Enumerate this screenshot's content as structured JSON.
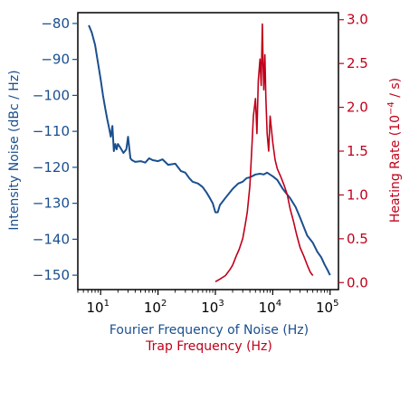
{
  "chart_data": {
    "type": "line",
    "colors": {
      "left": "#1a4f8f",
      "right": "#c0001a",
      "frame": "#000000"
    },
    "x_axis": {
      "scale": "log",
      "range_hz": [
        4,
        140000
      ],
      "ticks": [
        {
          "value": 10,
          "label": "10",
          "exponent": "1"
        },
        {
          "value": 100,
          "label": "10",
          "exponent": "2"
        },
        {
          "value": 1000,
          "label": "10",
          "exponent": "3"
        },
        {
          "value": 10000,
          "label": "10",
          "exponent": "4"
        },
        {
          "value": 100000,
          "label": "10",
          "exponent": "5"
        }
      ],
      "label_primary": "Fourier Frequency of Noise (Hz)",
      "label_secondary": "Trap Frequency (Hz)"
    },
    "y_left": {
      "label": "Intensity Noise  (dBc / Hz)",
      "range": [
        -154,
        -77
      ],
      "ticks": [
        -80,
        -90,
        -100,
        -110,
        -120,
        -130,
        -140,
        -150
      ]
    },
    "y_right": {
      "label_prefix": "Heating Rate (10",
      "label_exponent": "−4",
      "label_suffix": " / s)",
      "range": [
        -0.08,
        3.08
      ],
      "ticks": [
        {
          "value": 0.0,
          "label": "0.0"
        },
        {
          "value": 0.5,
          "label": "0.5"
        },
        {
          "value": 1.0,
          "label": "1.0"
        },
        {
          "value": 1.5,
          "label": "1.5"
        },
        {
          "value": 2.0,
          "label": "2.0"
        },
        {
          "value": 2.5,
          "label": "2.5"
        },
        {
          "value": 3.0,
          "label": "3.0"
        }
      ]
    },
    "series": [
      {
        "axis": "left",
        "x_hz": [
          6.2,
          7,
          8,
          9,
          10,
          11,
          12,
          13,
          14,
          15,
          16,
          17,
          18,
          19,
          20,
          22,
          25,
          28,
          30,
          33,
          35,
          40,
          50,
          60,
          70,
          80,
          100,
          120,
          150,
          200,
          250,
          300,
          350,
          400,
          500,
          600,
          700,
          800,
          900,
          1000,
          1100,
          1200,
          1500,
          2000,
          2500,
          3000,
          3500,
          4000,
          5000,
          6000,
          7000,
          8000,
          10000,
          12000,
          15000,
          20000,
          25000,
          30000,
          40000,
          50000,
          60000,
          70000,
          80000,
          90000,
          100000
        ],
        "values": [
          -80.5,
          -82.5,
          -86,
          -91,
          -95.5,
          -100,
          -103.5,
          -106.5,
          -109,
          -111.5,
          -108.5,
          -115.5,
          -113.5,
          -115,
          -113.5,
          -114.5,
          -116,
          -115,
          -111.5,
          -117.5,
          -118,
          -118.5,
          -118.3,
          -118.7,
          -117.5,
          -118,
          -118.3,
          -117.8,
          -119.3,
          -119,
          -121,
          -121.5,
          -123,
          -124,
          -124.5,
          -125.5,
          -127,
          -128.5,
          -130,
          -132.5,
          -132.5,
          -130.5,
          -128.5,
          -126,
          -124.5,
          -124,
          -123,
          -122.8,
          -122,
          -121.8,
          -122,
          -121.5,
          -122.5,
          -123.5,
          -126,
          -128.5,
          -131,
          -134,
          -139,
          -141,
          -143.5,
          -145,
          -147,
          -148.5,
          -150
        ]
      },
      {
        "axis": "right",
        "x_hz": [
          1000,
          1200,
          1500,
          1800,
          2000,
          2300,
          2600,
          3000,
          3300,
          3600,
          4000,
          4300,
          4600,
          5000,
          5300,
          5600,
          6000,
          6300,
          6600,
          6800,
          7000,
          7300,
          7600,
          8000,
          8500,
          9000,
          10000,
          11000,
          12000,
          14000,
          16000,
          18000,
          20000,
          23000,
          26000,
          30000,
          35000,
          40000,
          45000,
          50000
        ],
        "values": [
          0.01,
          0.04,
          0.08,
          0.15,
          0.2,
          0.3,
          0.38,
          0.5,
          0.65,
          0.8,
          1.1,
          1.5,
          1.9,
          2.1,
          1.7,
          2.3,
          2.55,
          2.25,
          2.95,
          2.5,
          2.2,
          2.6,
          2.1,
          1.7,
          1.5,
          1.9,
          1.6,
          1.4,
          1.3,
          1.2,
          1.1,
          1.0,
          0.85,
          0.7,
          0.55,
          0.4,
          0.3,
          0.2,
          0.12,
          0.08
        ]
      }
    ]
  }
}
